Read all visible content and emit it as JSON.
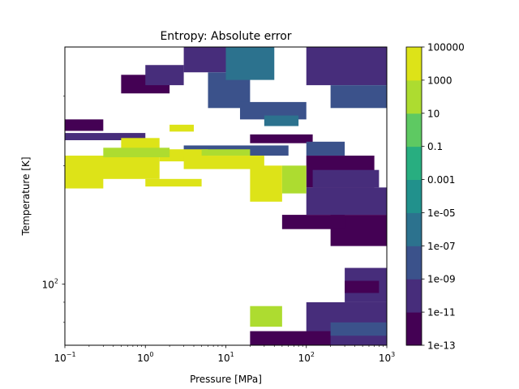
{
  "chart_data": {
    "type": "contourf",
    "title": "Entropy: Absolute error",
    "xlabel": "Pressure [MPa]",
    "ylabel": "Temperature [K]",
    "xscale": "log",
    "yscale": "log",
    "xlim": [
      0.1,
      1000
    ],
    "ylim": [
      70,
      400
    ],
    "x_ticks": [
      {
        "value": 0.1,
        "base": "10",
        "exp": "−1"
      },
      {
        "value": 1,
        "base": "10",
        "exp": "0"
      },
      {
        "value": 10,
        "base": "10",
        "exp": "1"
      },
      {
        "value": 100,
        "base": "10",
        "exp": "2"
      },
      {
        "value": 1000,
        "base": "10",
        "exp": "3"
      }
    ],
    "y_ticks": [
      {
        "value": 100,
        "base": "10",
        "exp": "2"
      }
    ],
    "colorbar": {
      "scale": "log",
      "levels": [
        "1e-13",
        "1e-11",
        "1e-09",
        "1e-07",
        "1e-05",
        "0.001",
        "0.1",
        "10",
        "1000",
        "100000"
      ],
      "colors": [
        "#440154",
        "#472d7b",
        "#3b528b",
        "#2c728e",
        "#21918c",
        "#28ae80",
        "#5ec962",
        "#addc30",
        "#dde318"
      ]
    },
    "grid": false,
    "legend": "none",
    "regions": [
      {
        "p": [
          0.5,
          2
        ],
        "T": [
          305,
          340
        ],
        "level": 0
      },
      {
        "p": [
          0.1,
          0.3
        ],
        "T": [
          245,
          262
        ],
        "level": 0
      },
      {
        "p": [
          0.1,
          1
        ],
        "T": [
          232,
          242
        ],
        "level": 1
      },
      {
        "p": [
          1,
          3
        ],
        "T": [
          320,
          360
        ],
        "level": 1
      },
      {
        "p": [
          3,
          10
        ],
        "T": [
          345,
          400
        ],
        "level": 1
      },
      {
        "p": [
          6,
          20
        ],
        "T": [
          280,
          345
        ],
        "level": 2
      },
      {
        "p": [
          10,
          40
        ],
        "T": [
          330,
          400
        ],
        "level": 3
      },
      {
        "p": [
          15,
          100
        ],
        "T": [
          262,
          290
        ],
        "level": 2
      },
      {
        "p": [
          3,
          60
        ],
        "T": [
          212,
          225
        ],
        "level": 2
      },
      {
        "p": [
          30,
          80
        ],
        "T": [
          252,
          268
        ],
        "level": 3
      },
      {
        "p": [
          20,
          120
        ],
        "T": [
          228,
          240
        ],
        "level": 0
      },
      {
        "p": [
          100,
          1000
        ],
        "T": [
          320,
          400
        ],
        "level": 1
      },
      {
        "p": [
          200,
          1000
        ],
        "T": [
          280,
          320
        ],
        "level": 2
      },
      {
        "p": [
          100,
          300
        ],
        "T": [
          212,
          230
        ],
        "level": 2
      },
      {
        "p": [
          100,
          700
        ],
        "T": [
          176,
          212
        ],
        "level": 0
      },
      {
        "p": [
          120,
          800
        ],
        "T": [
          176,
          195
        ],
        "level": 1
      },
      {
        "p": [
          100,
          1000
        ],
        "T": [
          150,
          176
        ],
        "level": 1
      },
      {
        "p": [
          200,
          1000
        ],
        "T": [
          125,
          150
        ],
        "level": 0
      },
      {
        "p": [
          50,
          300
        ],
        "T": [
          138,
          150
        ],
        "level": 0
      },
      {
        "p": [
          0.5,
          1.5
        ],
        "T": [
          212,
          235
        ],
        "level": 8
      },
      {
        "p": [
          0.1,
          1.5
        ],
        "T": [
          185,
          212
        ],
        "level": 8
      },
      {
        "p": [
          0.1,
          0.3
        ],
        "T": [
          175,
          200
        ],
        "level": 8
      },
      {
        "p": [
          1.5,
          6
        ],
        "T": [
          205,
          220
        ],
        "level": 8
      },
      {
        "p": [
          2,
          4
        ],
        "T": [
          244,
          254
        ],
        "level": 8
      },
      {
        "p": [
          1,
          5
        ],
        "T": [
          177,
          185
        ],
        "level": 8
      },
      {
        "p": [
          3,
          30
        ],
        "T": [
          196,
          212
        ],
        "level": 8
      },
      {
        "p": [
          20,
          50
        ],
        "T": [
          162,
          200
        ],
        "level": 8
      },
      {
        "p": [
          50,
          100
        ],
        "T": [
          170,
          200
        ],
        "level": 7
      },
      {
        "p": [
          0.3,
          2
        ],
        "T": [
          210,
          222
        ],
        "level": 7
      },
      {
        "p": [
          5,
          20
        ],
        "T": [
          212,
          220
        ],
        "level": 7
      },
      {
        "p": [
          300,
          1000
        ],
        "T": [
          90,
          110
        ],
        "level": 1
      },
      {
        "p": [
          300,
          800
        ],
        "T": [
          95,
          102
        ],
        "level": 0
      },
      {
        "p": [
          100,
          1000
        ],
        "T": [
          70,
          90
        ],
        "level": 1
      },
      {
        "p": [
          20,
          50
        ],
        "T": [
          78,
          88
        ],
        "level": 7
      },
      {
        "p": [
          20,
          200
        ],
        "T": [
          70,
          76
        ],
        "level": 0
      },
      {
        "p": [
          200,
          1000
        ],
        "T": [
          74,
          80
        ],
        "level": 2
      }
    ]
  }
}
